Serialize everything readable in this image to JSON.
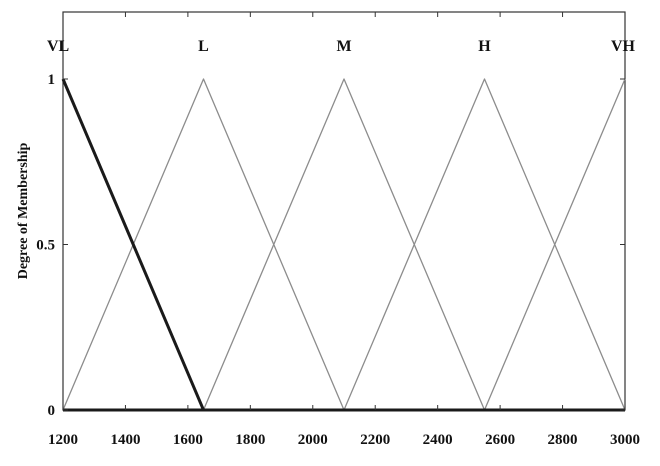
{
  "chart_data": {
    "type": "line",
    "title": "",
    "ylabel": "Degree of Membership",
    "xlabel": "",
    "xlim": [
      1200,
      3000
    ],
    "ylim": [
      0,
      1
    ],
    "x_ticks": [
      1200,
      1400,
      1600,
      1800,
      2000,
      2200,
      2400,
      2600,
      2800,
      3000
    ],
    "y_ticks": [
      0,
      0.5,
      1
    ],
    "y_tick_labels": [
      "0",
      "0.5",
      "1"
    ],
    "grid": false,
    "series": [
      {
        "name": "VL",
        "x": [
          1200,
          1650
        ],
        "y": [
          1,
          0
        ],
        "highlight": true
      },
      {
        "name": "L",
        "x": [
          1200,
          1650,
          2100
        ],
        "y": [
          0,
          1,
          0
        ]
      },
      {
        "name": "M",
        "x": [
          1650,
          2100,
          2550
        ],
        "y": [
          0,
          1,
          0
        ]
      },
      {
        "name": "H",
        "x": [
          2100,
          2550,
          3000
        ],
        "y": [
          0,
          1,
          0
        ]
      },
      {
        "name": "VH",
        "x": [
          2550,
          3000
        ],
        "y": [
          0,
          1
        ]
      }
    ],
    "colors": {
      "highlight": "#1a1a1a",
      "line": "#8c8c8c",
      "frame": "#333333"
    }
  }
}
